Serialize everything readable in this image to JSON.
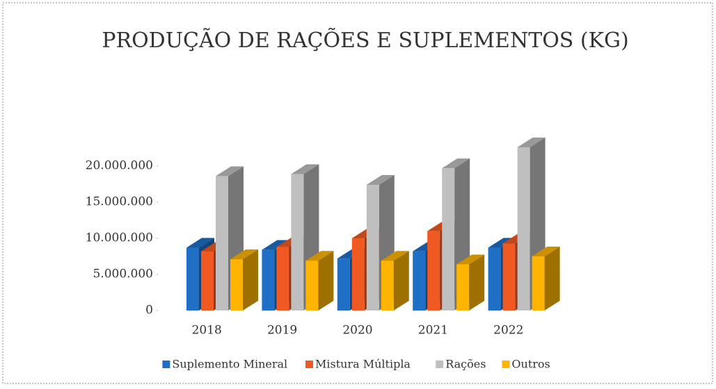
{
  "chart_data": {
    "type": "bar3d",
    "title": "PRODUÇÃO DE RAÇÕES E SUPLEMENTOS (KG)",
    "categories": [
      "2018",
      "2019",
      "2020",
      "2021",
      "2022"
    ],
    "series": [
      {
        "name": "Suplemento Mineral",
        "color": "#1f6fc6",
        "values": [
          8700000,
          8400000,
          7200000,
          8200000,
          8700000
        ]
      },
      {
        "name": "Mistura Múltipla",
        "color": "#f05a22",
        "values": [
          8200000,
          8800000,
          10000000,
          11000000,
          9300000
        ]
      },
      {
        "name": "Rações",
        "color": "#bfbfbf",
        "values": [
          18600000,
          18900000,
          17400000,
          19700000,
          22600000
        ]
      },
      {
        "name": "Outros",
        "color": "#ffb400",
        "values": [
          7100000,
          6900000,
          6900000,
          6400000,
          7500000
        ]
      }
    ],
    "ylim": [
      0,
      25000000
    ],
    "yticks": [
      0,
      {
        "value": 5000000,
        "label": "5.000.000"
      },
      {
        "value": 10000000,
        "label": "10.000.000"
      },
      {
        "value": 15000000,
        "label": "15.000.000"
      },
      {
        "value": 20000000,
        "label": "20.000.000"
      }
    ],
    "legend": "bottom"
  }
}
